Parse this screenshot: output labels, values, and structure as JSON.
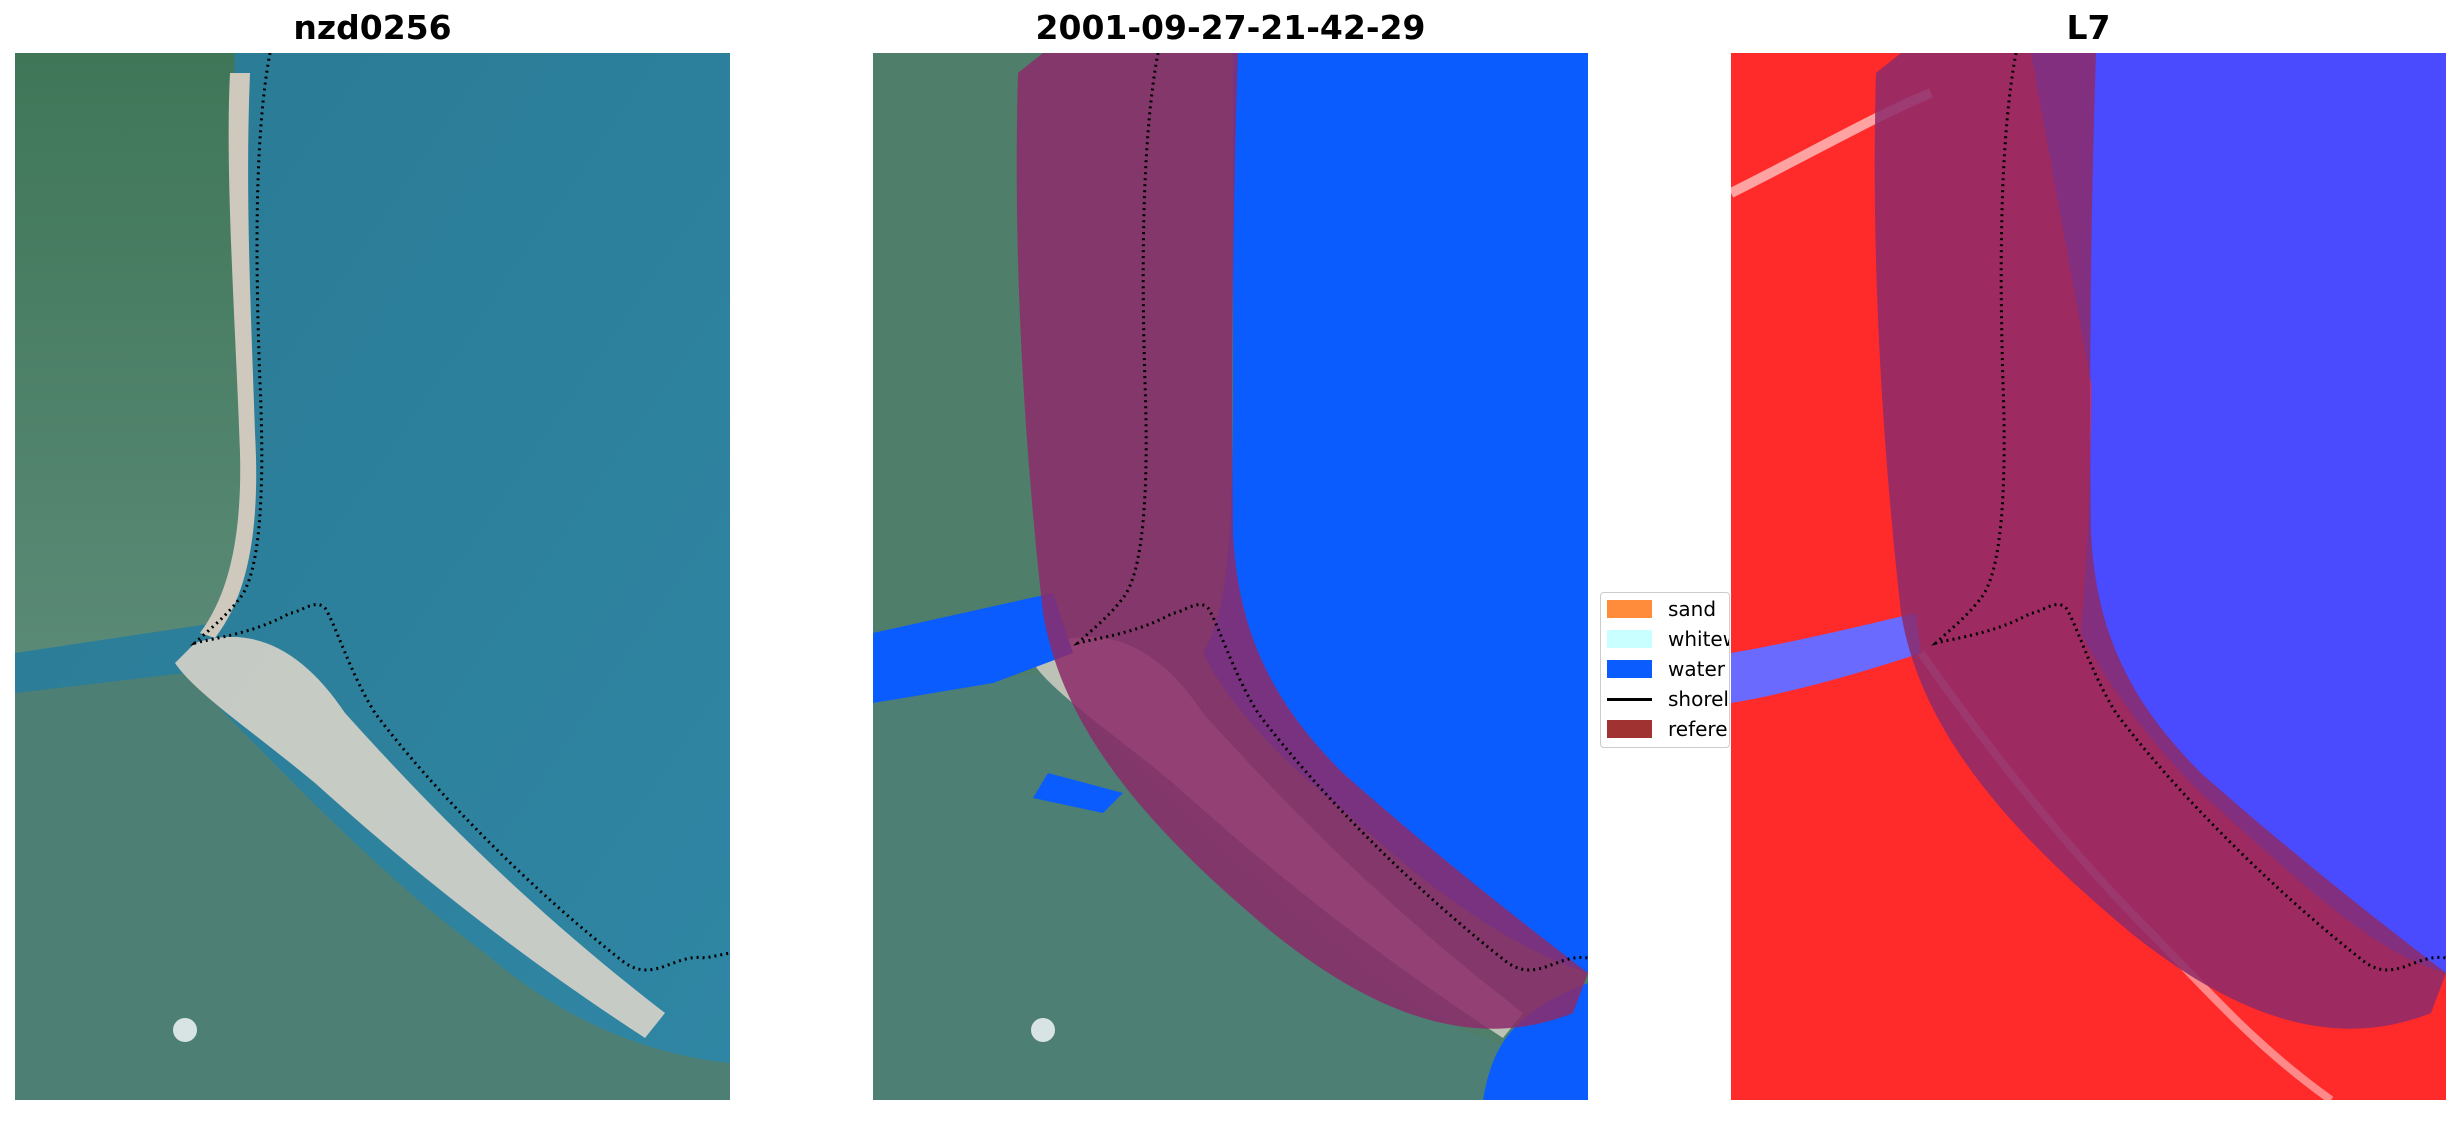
{
  "panels": [
    {
      "title": "nzd0256",
      "kind": "rgb"
    },
    {
      "title": "2001-09-27-21-42-29",
      "kind": "classified"
    },
    {
      "title": "L7",
      "kind": "index"
    }
  ],
  "legend": {
    "items": [
      {
        "label": "sand",
        "color": "#ff8c3a",
        "shape": "patch"
      },
      {
        "label": "whitewater",
        "color": "#c9ffff",
        "shape": "patch"
      },
      {
        "label": "water",
        "color": "#0a5cff",
        "shape": "patch"
      },
      {
        "label": "shoreline",
        "color": "#000000",
        "shape": "line"
      },
      {
        "label": "reference",
        "color": "#a03232",
        "shape": "patch"
      }
    ]
  },
  "colors": {
    "sea_rgb": "#2f7f99",
    "land_rgb": "#4f7f6a",
    "beach_rgb": "#d0ccc2",
    "water_class": "#0a5cff",
    "reference_band": "#8c2a6a",
    "index_red": "#ff2a2a",
    "index_blue": "#4a4aff"
  }
}
